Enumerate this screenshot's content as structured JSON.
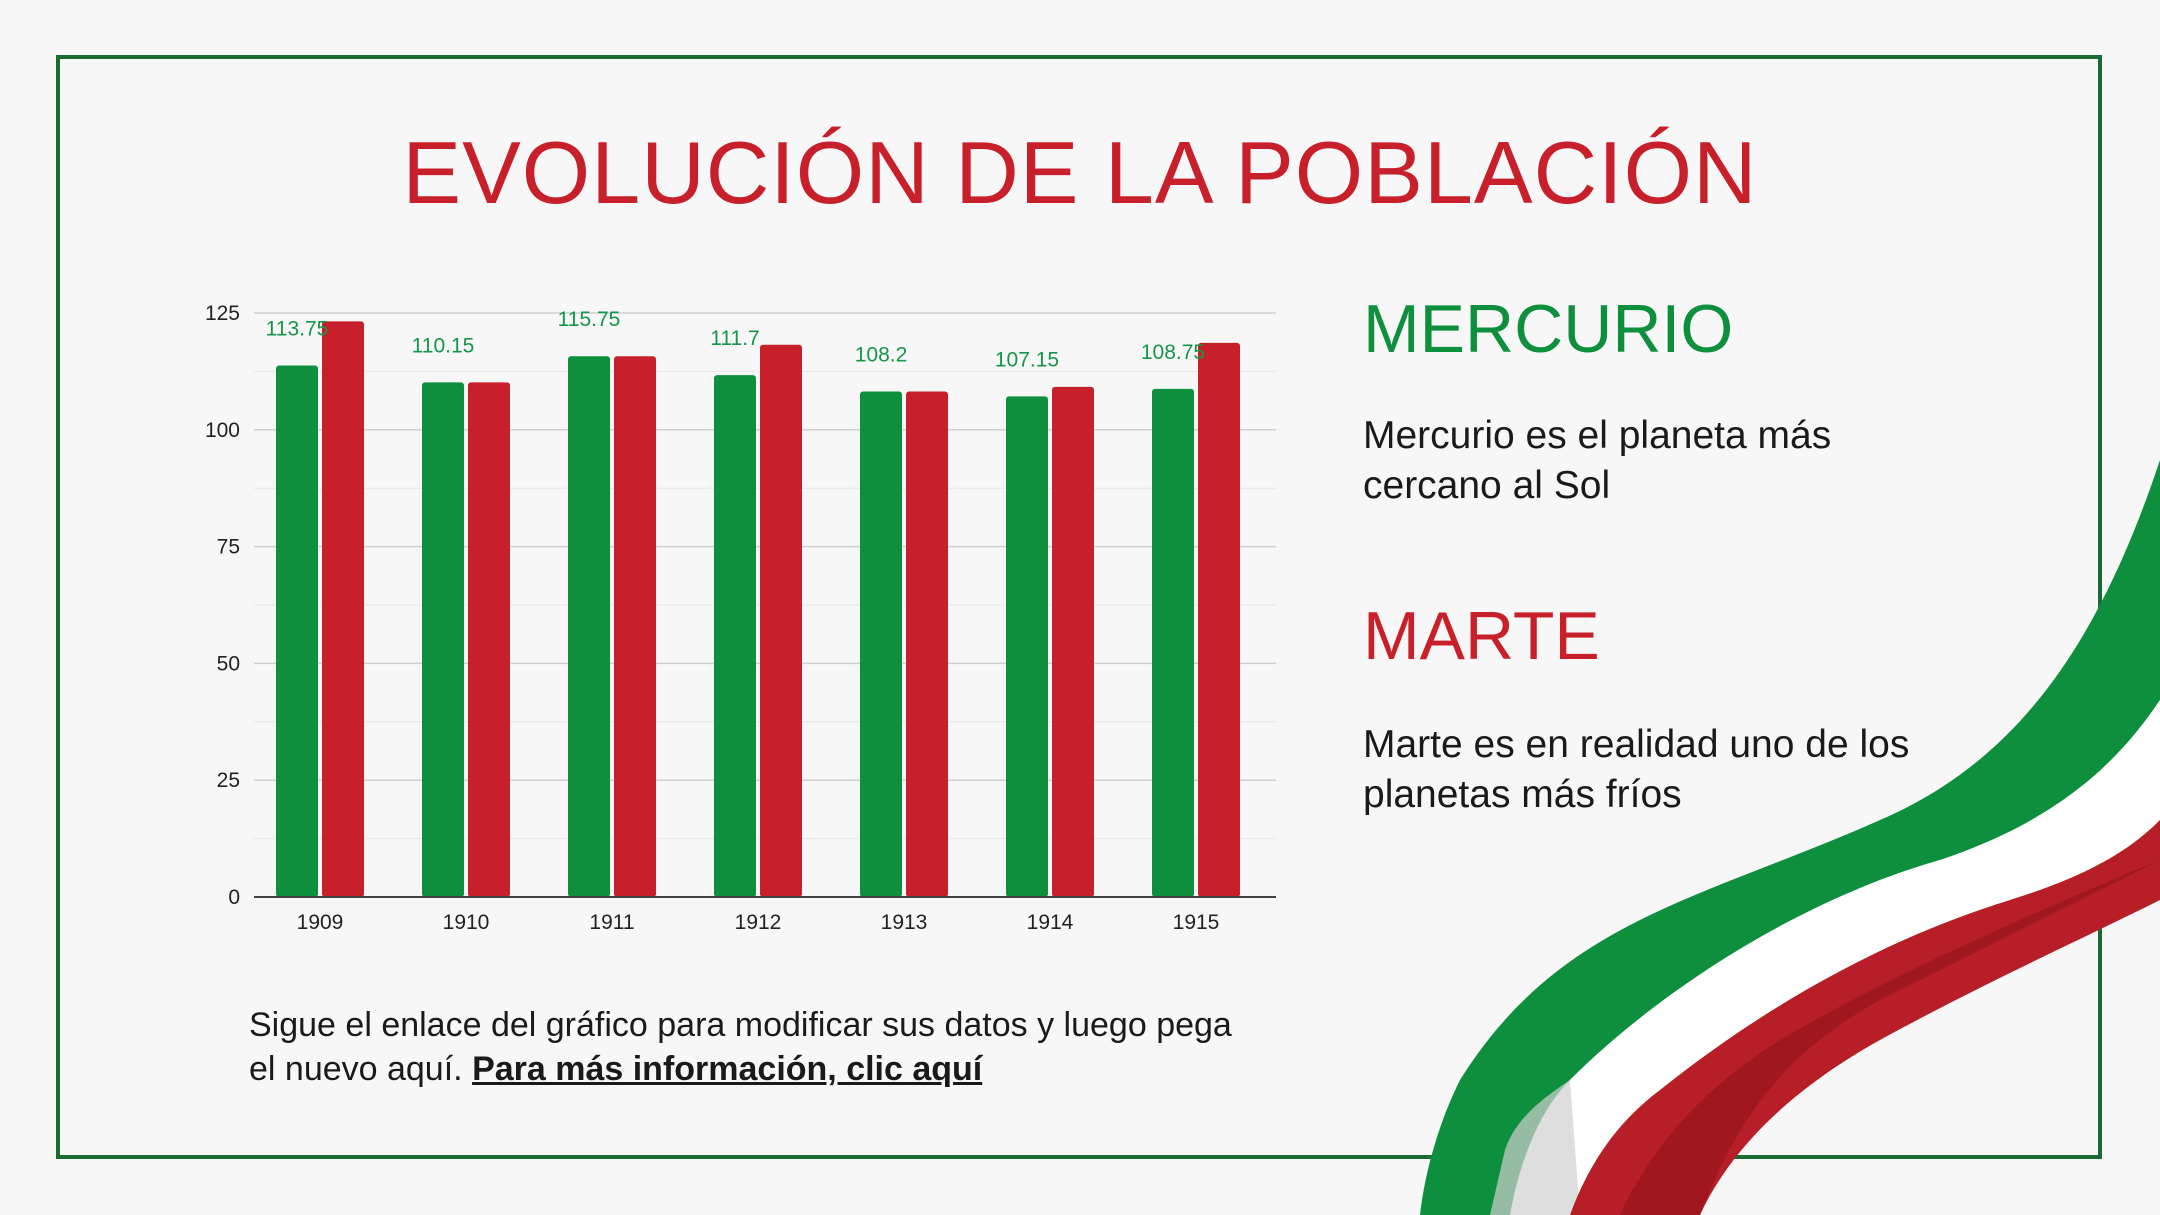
{
  "slide": {
    "title": "EVOLUCIÓN DE LA POBLACIÓN",
    "note_text": "Sigue el enlace del gráfico para modificar sus datos y luego pega el nuevo aquí. ",
    "note_link": "Para más información, clic aquí"
  },
  "sections": [
    {
      "heading": "MERCURIO",
      "text": "Mercurio es el planeta más cercano al Sol",
      "color": "#0e8f3e"
    },
    {
      "heading": "MARTE",
      "text": "Marte es en realidad uno de los planetas más fríos",
      "color": "#c8202a"
    }
  ],
  "colors": {
    "green": "#0e8f3e",
    "red": "#c8202a",
    "frame": "#1b6b35"
  },
  "chart_data": {
    "type": "bar",
    "categories": [
      "1909",
      "1910",
      "1911",
      "1912",
      "1913",
      "1914",
      "1915"
    ],
    "series": [
      {
        "values": [
          113.75,
          110.15,
          115.75,
          111.7,
          108.2,
          107.15,
          108.75
        ],
        "color": "#0e8f3e"
      },
      {
        "values": [
          123.2,
          110.15,
          115.75,
          118.2,
          108.2,
          109.2,
          118.6
        ],
        "color": "#c8202a"
      }
    ],
    "data_labels": [
      "113.75",
      "110.15",
      "115.75",
      "111.7",
      "108.2",
      "107.15",
      "108.75"
    ],
    "ylim": [
      0,
      125
    ],
    "yticks": [
      0,
      25,
      50,
      75,
      100,
      125
    ],
    "grid": true,
    "legend": "none",
    "title": "",
    "xlabel": "",
    "ylabel": ""
  }
}
